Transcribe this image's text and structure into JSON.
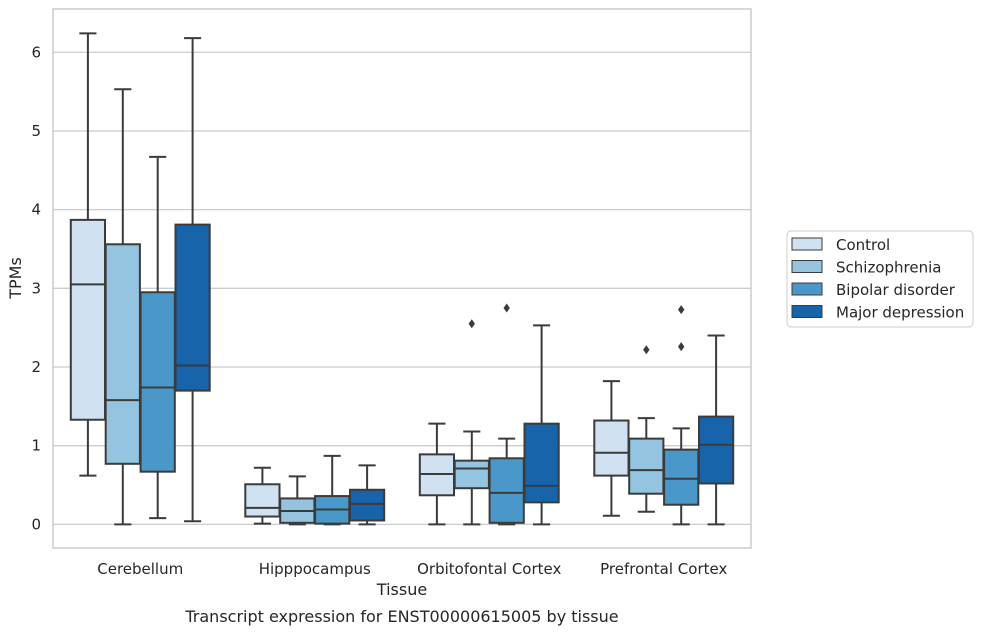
{
  "chart_data": {
    "type": "boxplot",
    "title": "",
    "caption": "Transcript expression for ENST00000615005 by tissue",
    "xlabel": "Tissue",
    "ylabel": "TPMs",
    "ylim": [
      -0.3,
      6.55
    ],
    "yticks": [
      0,
      1,
      2,
      3,
      4,
      5,
      6
    ],
    "grid": "horizontal",
    "legend_position": "right",
    "categories": [
      "Cerebellum",
      "Hipppocampus",
      "Orbitofontal Cortex",
      "Prefrontal Cortex"
    ],
    "series": [
      {
        "name": "Control",
        "color": "#d0e1f2",
        "boxes": [
          {
            "whisker_low": 0.62,
            "q1": 1.33,
            "median": 3.05,
            "q3": 3.87,
            "whisker_high": 6.24,
            "outliers": []
          },
          {
            "whisker_low": 0.01,
            "q1": 0.1,
            "median": 0.21,
            "q3": 0.51,
            "whisker_high": 0.72,
            "outliers": []
          },
          {
            "whisker_low": 0.0,
            "q1": 0.37,
            "median": 0.64,
            "q3": 0.89,
            "whisker_high": 1.28,
            "outliers": []
          },
          {
            "whisker_low": 0.11,
            "q1": 0.62,
            "median": 0.91,
            "q3": 1.32,
            "whisker_high": 1.82,
            "outliers": []
          }
        ]
      },
      {
        "name": "Schizophrenia",
        "color": "#94c4df",
        "boxes": [
          {
            "whisker_low": 0.0,
            "q1": 0.77,
            "median": 1.58,
            "q3": 3.56,
            "whisker_high": 5.53,
            "outliers": []
          },
          {
            "whisker_low": 0.0,
            "q1": 0.02,
            "median": 0.17,
            "q3": 0.33,
            "whisker_high": 0.61,
            "outliers": []
          },
          {
            "whisker_low": 0.0,
            "q1": 0.46,
            "median": 0.71,
            "q3": 0.81,
            "whisker_high": 1.18,
            "outliers": [
              2.55
            ]
          },
          {
            "whisker_low": 0.16,
            "q1": 0.39,
            "median": 0.69,
            "q3": 1.09,
            "whisker_high": 1.35,
            "outliers": [
              2.22
            ]
          }
        ]
      },
      {
        "name": "Bipolar disorder",
        "color": "#4a98c9",
        "boxes": [
          {
            "whisker_low": 0.08,
            "q1": 0.67,
            "median": 1.74,
            "q3": 2.95,
            "whisker_high": 4.67,
            "outliers": []
          },
          {
            "whisker_low": 0.0,
            "q1": 0.01,
            "median": 0.19,
            "q3": 0.36,
            "whisker_high": 0.87,
            "outliers": []
          },
          {
            "whisker_low": 0.0,
            "q1": 0.02,
            "median": 0.4,
            "q3": 0.84,
            "whisker_high": 1.09,
            "outliers": [
              2.75
            ]
          },
          {
            "whisker_low": 0.0,
            "q1": 0.25,
            "median": 0.58,
            "q3": 0.95,
            "whisker_high": 1.22,
            "outliers": [
              2.26,
              2.73
            ]
          }
        ]
      },
      {
        "name": "Major depression",
        "color": "#1764ab",
        "boxes": [
          {
            "whisker_low": 0.04,
            "q1": 1.7,
            "median": 2.02,
            "q3": 3.81,
            "whisker_high": 6.18,
            "outliers": []
          },
          {
            "whisker_low": 0.0,
            "q1": 0.05,
            "median": 0.26,
            "q3": 0.44,
            "whisker_high": 0.75,
            "outliers": []
          },
          {
            "whisker_low": 0.0,
            "q1": 0.28,
            "median": 0.49,
            "q3": 1.28,
            "whisker_high": 2.53,
            "outliers": []
          },
          {
            "whisker_low": 0.0,
            "q1": 0.52,
            "median": 1.01,
            "q3": 1.37,
            "whisker_high": 2.4,
            "outliers": []
          }
        ]
      }
    ]
  }
}
